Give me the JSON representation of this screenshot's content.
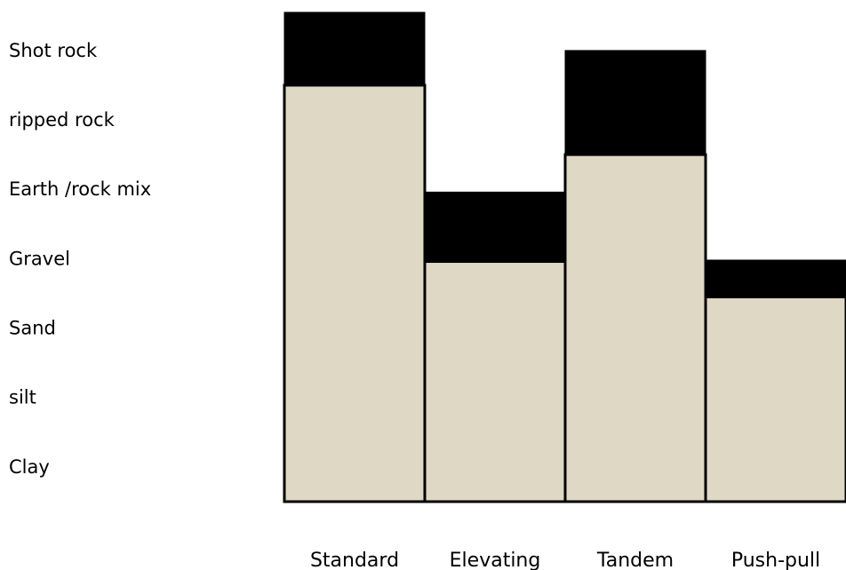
{
  "chart_data": {
    "type": "bar",
    "stacked": true,
    "categories": [
      "Standard",
      "Elevating",
      "Tandem",
      "Push-pull"
    ],
    "y_categories": [
      "Clay",
      "silt",
      "Sand",
      "Gravel",
      "Earth /rock mix",
      "ripped rock",
      "Shot rock"
    ],
    "series": [
      {
        "values": [
          5.5,
          2.96,
          4.5,
          2.45
        ]
      },
      {
        "values": [
          1.05,
          1.0,
          1.5,
          0.53
        ]
      }
    ],
    "ylim": [
      -0.5,
      6.6
    ],
    "grid": false,
    "legend": "none"
  },
  "colors": {
    "base": "#DED8C4",
    "top": "#000000",
    "outline": "#000000",
    "background": "#FFFFFF"
  }
}
